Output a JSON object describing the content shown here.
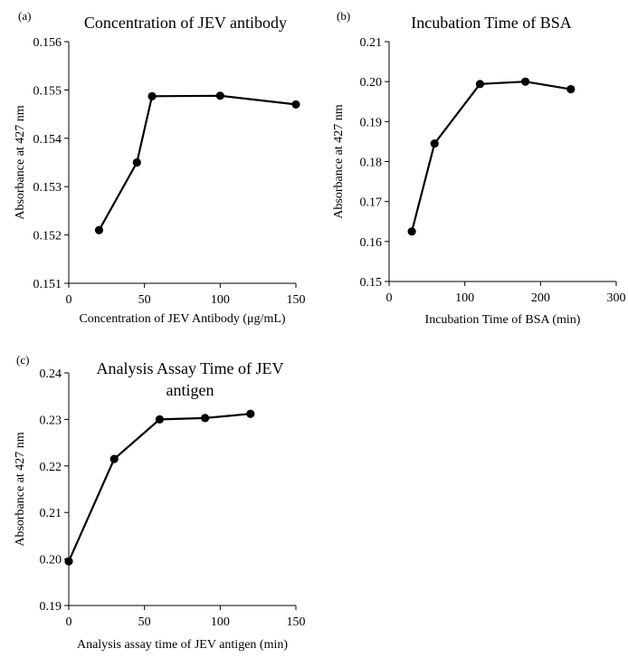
{
  "chart_data": [
    {
      "type": "line",
      "panel_label": "(a)",
      "title": [
        "Concentration of JEV antibody"
      ],
      "xlabel": "Concentration of JEV Antibody (μg/mL)",
      "ylabel": "Absorbance at 427 nm",
      "x": [
        20,
        45,
        55,
        100,
        150
      ],
      "series": [
        {
          "values": [
            0.1521,
            0.1535,
            0.15487,
            0.15488,
            0.1547
          ],
          "color": "#000000",
          "marker": "circle"
        }
      ],
      "xlim": [
        0,
        150
      ],
      "ylim": [
        0.151,
        0.156
      ],
      "xticks": [
        0,
        50,
        100,
        150
      ],
      "yticks": [
        0.151,
        0.152,
        0.153,
        0.154,
        0.155,
        0.156
      ],
      "xtick_labels": [
        "0",
        "50",
        "100",
        "150"
      ],
      "ytick_labels": [
        "0.151",
        "0.152",
        "0.153",
        "0.154",
        "0.155",
        "0.156"
      ],
      "grid": false,
      "legend": false
    },
    {
      "type": "line",
      "panel_label": "(b)",
      "title": [
        "Incubation Time of BSA"
      ],
      "xlabel": "Incubation Time of BSA (min)",
      "ylabel": "Absorbance at 427 nm",
      "x": [
        30,
        60,
        120,
        180,
        240
      ],
      "series": [
        {
          "values": [
            0.1625,
            0.1845,
            0.1994,
            0.2,
            0.1981
          ],
          "color": "#000000",
          "marker": "circle"
        }
      ],
      "xlim": [
        0,
        300
      ],
      "ylim": [
        0.15,
        0.21
      ],
      "xticks": [
        0,
        100,
        200,
        300
      ],
      "yticks": [
        0.15,
        0.16,
        0.17,
        0.18,
        0.19,
        0.2,
        0.21
      ],
      "xtick_labels": [
        "0",
        "100",
        "200",
        "300"
      ],
      "ytick_labels": [
        "0.15",
        "0.16",
        "0.17",
        "0.18",
        "0.19",
        "0.20",
        "0.21"
      ],
      "grid": false,
      "legend": false
    },
    {
      "type": "line",
      "panel_label": "(c)",
      "title": [
        "Analysis Assay Time of JEV",
        "antigen"
      ],
      "xlabel": "Analysis assay time of JEV antigen (min)",
      "ylabel": "Absorbance at 427 nm",
      "x": [
        0,
        30,
        60,
        90,
        120
      ],
      "series": [
        {
          "values": [
            0.1995,
            0.2215,
            0.23,
            0.2303,
            0.2312
          ],
          "color": "#000000",
          "marker": "circle"
        }
      ],
      "xlim": [
        0,
        150
      ],
      "ylim": [
        0.19,
        0.24
      ],
      "xticks": [
        0,
        50,
        100,
        150
      ],
      "yticks": [
        0.19,
        0.2,
        0.21,
        0.22,
        0.23,
        0.24
      ],
      "xtick_labels": [
        "0",
        "50",
        "100",
        "150"
      ],
      "ytick_labels": [
        "0.19",
        "0.20",
        "0.21",
        "0.22",
        "0.23",
        "0.24"
      ],
      "grid": false,
      "legend": false
    }
  ]
}
